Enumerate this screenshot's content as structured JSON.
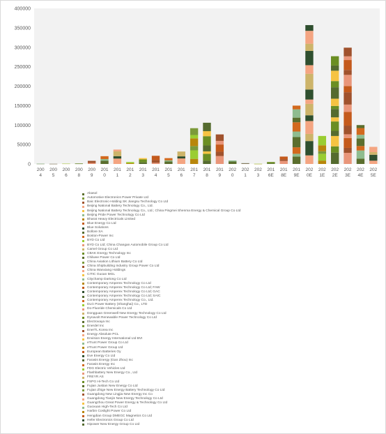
{
  "chart_data": {
    "type": "bar",
    "stacked": true,
    "title": "",
    "xlabel": "",
    "ylabel": "",
    "ylim": [
      0,
      400000
    ],
    "yticks": [
      "0",
      "50000",
      "100000",
      "150000",
      "200000",
      "250000",
      "300000",
      "350000",
      "400000"
    ],
    "grid": false,
    "legend_position": "bottom",
    "categories": [
      [
        "200",
        "4"
      ],
      [
        "200",
        "5"
      ],
      [
        "200",
        "6"
      ],
      [
        "200",
        "8"
      ],
      [
        "200",
        "9"
      ],
      [
        "201",
        "0"
      ],
      [
        "201",
        "1"
      ],
      [
        "201",
        "2"
      ],
      [
        "201",
        "3"
      ],
      [
        "201",
        "4"
      ],
      [
        "201",
        "5"
      ],
      [
        "201",
        "6"
      ],
      [
        "201",
        "7"
      ],
      [
        "201",
        "8"
      ],
      [
        "201",
        "9"
      ],
      [
        "202",
        "0"
      ],
      [
        "202",
        "1"
      ],
      [
        "202",
        "3"
      ],
      [
        "201",
        "6E"
      ],
      [
        "201",
        "8E"
      ],
      [
        "201",
        "9E"
      ],
      [
        "202",
        "0E"
      ],
      [
        "202",
        "1E"
      ],
      [
        "202",
        "2E"
      ],
      [
        "202",
        "3E"
      ],
      [
        "202",
        "4E"
      ],
      [
        "202",
        "5E"
      ]
    ],
    "totals": [
      1000,
      300,
      800,
      1500,
      8000,
      20000,
      37000,
      5000,
      15000,
      21000,
      15000,
      32000,
      92000,
      106000,
      76000,
      9000,
      2000,
      500,
      5000,
      19000,
      150000,
      357000,
      72000,
      277000,
      299000,
      100000,
      44000
    ],
    "palette": [
      "#5b6e2e",
      "#7c9a3a",
      "#a0522d",
      "#f4a582",
      "#f6c342",
      "#8fbc8f",
      "#b8860b",
      "#c45a1c",
      "#2f4f2f",
      "#556b2f",
      "#d2691e",
      "#9acd32",
      "#e9967a",
      "#cdb46a",
      "#6b8e23"
    ],
    "series": [
      {
        "name": "Akasol"
      },
      {
        "name": "Automotive Electronics Power Private Ltd"
      },
      {
        "name": "Baic Electronic-Holding SK Jiangsu Technology Co Ltd"
      },
      {
        "name": "Beijing National Battery Technology Co., Ltd."
      },
      {
        "name": "Beijing National Battery Technology Co., Ltd.; China Pingmei Shenma Energy & Chemical Group Co Ltd"
      },
      {
        "name": "Beijing Pride Power Technology Co Ltd"
      },
      {
        "name": "Bharat Heavy Electricals Limited"
      },
      {
        "name": "Blue Energy Co Ltd"
      },
      {
        "name": "Blue Solutions"
      },
      {
        "name": "Bollore SA"
      },
      {
        "name": "Boston-Power Inc"
      },
      {
        "name": "BYD Co Ltd"
      },
      {
        "name": "BYD Co Ltd; China Changan Automobile Group Co Ltd"
      },
      {
        "name": "Camel Group Co Ltd"
      },
      {
        "name": "CBAK Energy Technology Inc"
      },
      {
        "name": "Chilwee Power Co Ltd"
      },
      {
        "name": "China Aviation Lithium Battery Co Ltd"
      },
      {
        "name": "China Shipbuilding Industry Group Power Co Ltd"
      },
      {
        "name": "China Wanxiang Holdings"
      },
      {
        "name": "CITIC Guoan MGL"
      },
      {
        "name": "Citychamp Dartong Co Ltd"
      },
      {
        "name": "Contemporary Amperex Technology Co Ltd"
      },
      {
        "name": "Contemporary Amperex Technology Co Ltd; FAW"
      },
      {
        "name": "Contemporary Amperex Technology Co Ltd; GAC"
      },
      {
        "name": "Contemporary Amperex Technology Co Ltd; SAIC"
      },
      {
        "name": "Contemporary Amperex Technology Co., Ltd."
      },
      {
        "name": "DLG Power Battery (Shanghai) Co., LTD"
      },
      {
        "name": "Do-Fluoride Chemicals Co Ltd"
      },
      {
        "name": "Dongguan Greenwell New Energy Technology Co Ltd"
      },
      {
        "name": "Dynavolt Renewable Power Technology Co Ltd"
      },
      {
        "name": "Electrovaya Inc"
      },
      {
        "name": "Enerdel Inc"
      },
      {
        "name": "EnerTL Korea Inc"
      },
      {
        "name": "Energy Absolute PCL"
      },
      {
        "name": "Envision Energy International Ltd BVI"
      },
      {
        "name": "eTrunt Power Group Co Ltd"
      },
      {
        "name": "eTrunt Power Group Ltd"
      },
      {
        "name": "European Batteries Oy"
      },
      {
        "name": "Eve Energy Co Ltd"
      },
      {
        "name": "Farasis Energy (Gan Zhou) Inc"
      },
      {
        "name": "Farasis Energy Inc"
      },
      {
        "name": "FDG Electric Vehicles Ltd"
      },
      {
        "name": "Flashbattery New Energy Co., Ltd"
      },
      {
        "name": "FREYR AS"
      },
      {
        "name": "FSPG Hi-Tech Co Ltd"
      },
      {
        "name": "Fujian Justian New Energy Co Ltd"
      },
      {
        "name": "Fujian Zhige New Energy Battery Technology Co Ltd"
      },
      {
        "name": "Guangdong New Lingjia New Energy Inc Co"
      },
      {
        "name": "Guangdong Tianjin New Energy Technology Co Ltd"
      },
      {
        "name": "Guangzhou Great Power Energy & Technology Co Ltd"
      },
      {
        "name": "Guoxuan High-Tech Co Ltd"
      },
      {
        "name": "Harbin Coslight Power Co Ltd"
      },
      {
        "name": "Hengdian Group DMEGC Magnetics Co Ltd"
      },
      {
        "name": "Hefer Electronics Group Co Ltd"
      },
      {
        "name": "Hipower New Energy Group Co Ltd"
      }
    ]
  }
}
